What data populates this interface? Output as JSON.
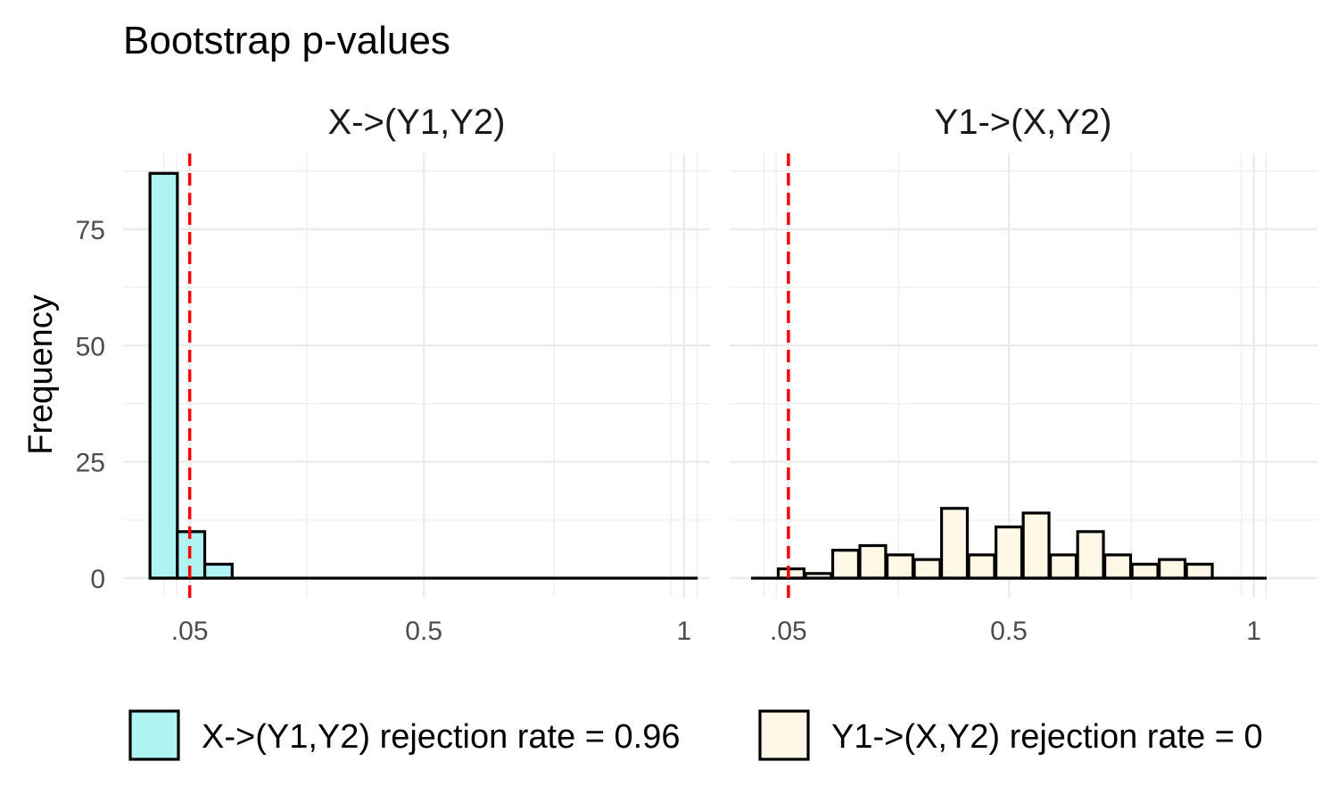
{
  "chart_data": {
    "type": "bar",
    "title": "Bootstrap p-values",
    "ylabel": "Frequency",
    "xlabel": "",
    "ylim": [
      0,
      88
    ],
    "y_ticks": [
      0,
      25,
      50,
      75
    ],
    "x_ticks": [
      {
        "value": 0.05,
        "label": ".05"
      },
      {
        "value": 0.5,
        "label": "0.5"
      },
      {
        "value": 1,
        "label": "1"
      }
    ],
    "x_minor_gridlines": [
      0,
      0.025,
      0.275,
      0.75,
      0.975,
      1.025
    ],
    "reference_line": {
      "x": 0.05,
      "color": "#ff0000",
      "style": "dashed"
    },
    "bin_width": 0.05263,
    "panels": [
      {
        "name": "X->(Y1,Y2)",
        "fill": "#b0f3f3",
        "bin_centers": [
          0.0,
          0.0526,
          0.1053,
          0.1579,
          0.2105,
          0.2632,
          0.3158,
          0.3684,
          0.4211,
          0.4737,
          0.5263,
          0.5789,
          0.6316,
          0.6842,
          0.7368,
          0.7895,
          0.8421,
          0.8947,
          0.9474,
          1.0
        ],
        "counts": [
          87,
          10,
          3,
          0,
          0,
          0,
          0,
          0,
          0,
          0,
          0,
          0,
          0,
          0,
          0,
          0,
          0,
          0,
          0,
          0
        ],
        "x_range": [
          -0.078,
          1.05
        ]
      },
      {
        "name": "Y1->(X,Y2)",
        "fill": "#fff8e6",
        "bin_centers": [
          0.0,
          0.0556,
          0.1111,
          0.1667,
          0.2222,
          0.2778,
          0.3333,
          0.3889,
          0.4444,
          0.5,
          0.5556,
          0.6111,
          0.6667,
          0.7222,
          0.7778,
          0.8333,
          0.8889,
          0.9444,
          1.0
        ],
        "counts": [
          0,
          2,
          1,
          6,
          7,
          5,
          4,
          15,
          5,
          11,
          14,
          5,
          10,
          5,
          3,
          4,
          3,
          0,
          0
        ],
        "x_range": [
          -0.07,
          1.13
        ]
      }
    ],
    "legend": {
      "position": "bottom",
      "entries": [
        {
          "label": "X->(Y1,Y2) rejection rate =  0.96",
          "fill": "#b0f3f3"
        },
        {
          "label": "Y1->(X,Y2) rejection rate =  0",
          "fill": "#fff8e6"
        }
      ]
    }
  }
}
